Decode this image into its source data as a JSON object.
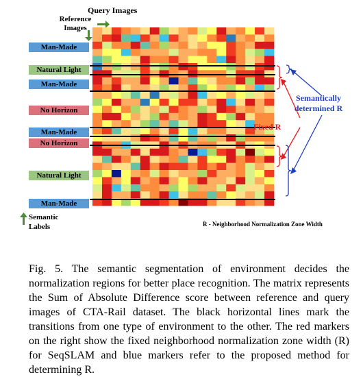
{
  "figure": {
    "query_images_label": "Query Images",
    "reference_images_label": "Reference\nImages",
    "semantic_labels_label": "Semantic\nLabels",
    "fixed_r_label": "Fixed R",
    "semantic_r_label": "Semantically\ndetermined R",
    "r_note": "R - Neighborhood Normalization Zone Width",
    "labels": [
      {
        "text": "Man-Made",
        "color": "blue"
      },
      {
        "text": "Natural Light",
        "color": "green"
      },
      {
        "text": "Man-Made",
        "color": "blue"
      },
      {
        "text": "No Horizon",
        "color": "red"
      },
      {
        "text": "Man-Made",
        "color": "blue"
      },
      {
        "text": "No Horizon",
        "color": "red"
      },
      {
        "text": "Natural Light",
        "color": "green"
      },
      {
        "text": "Man-Made",
        "color": "blue"
      }
    ]
  },
  "caption": "Fig. 5.   The semantic segmentation of environment decides the normalization regions for better place recognition. The matrix represents the Sum of Absolute Difference score between reference and query images of CTA-Rail dataset. The black horizontal lines mark the transitions from one type of environment to the other. The red markers on the right show the fixed neighborhood normalization zone width (R) for SeqSLAM and blue markers refer to the proposed method for determining R.",
  "colors": {
    "heat": [
      "#d7191c",
      "#f03b20",
      "#fd8d3c",
      "#fdae61",
      "#fee08b",
      "#ffff66",
      "#d9ef8b",
      "#a6d96a",
      "#66c2a5",
      "#3ec1e6",
      "#2c7bb6",
      "#0a1a8c",
      "#7f0000"
    ]
  }
}
